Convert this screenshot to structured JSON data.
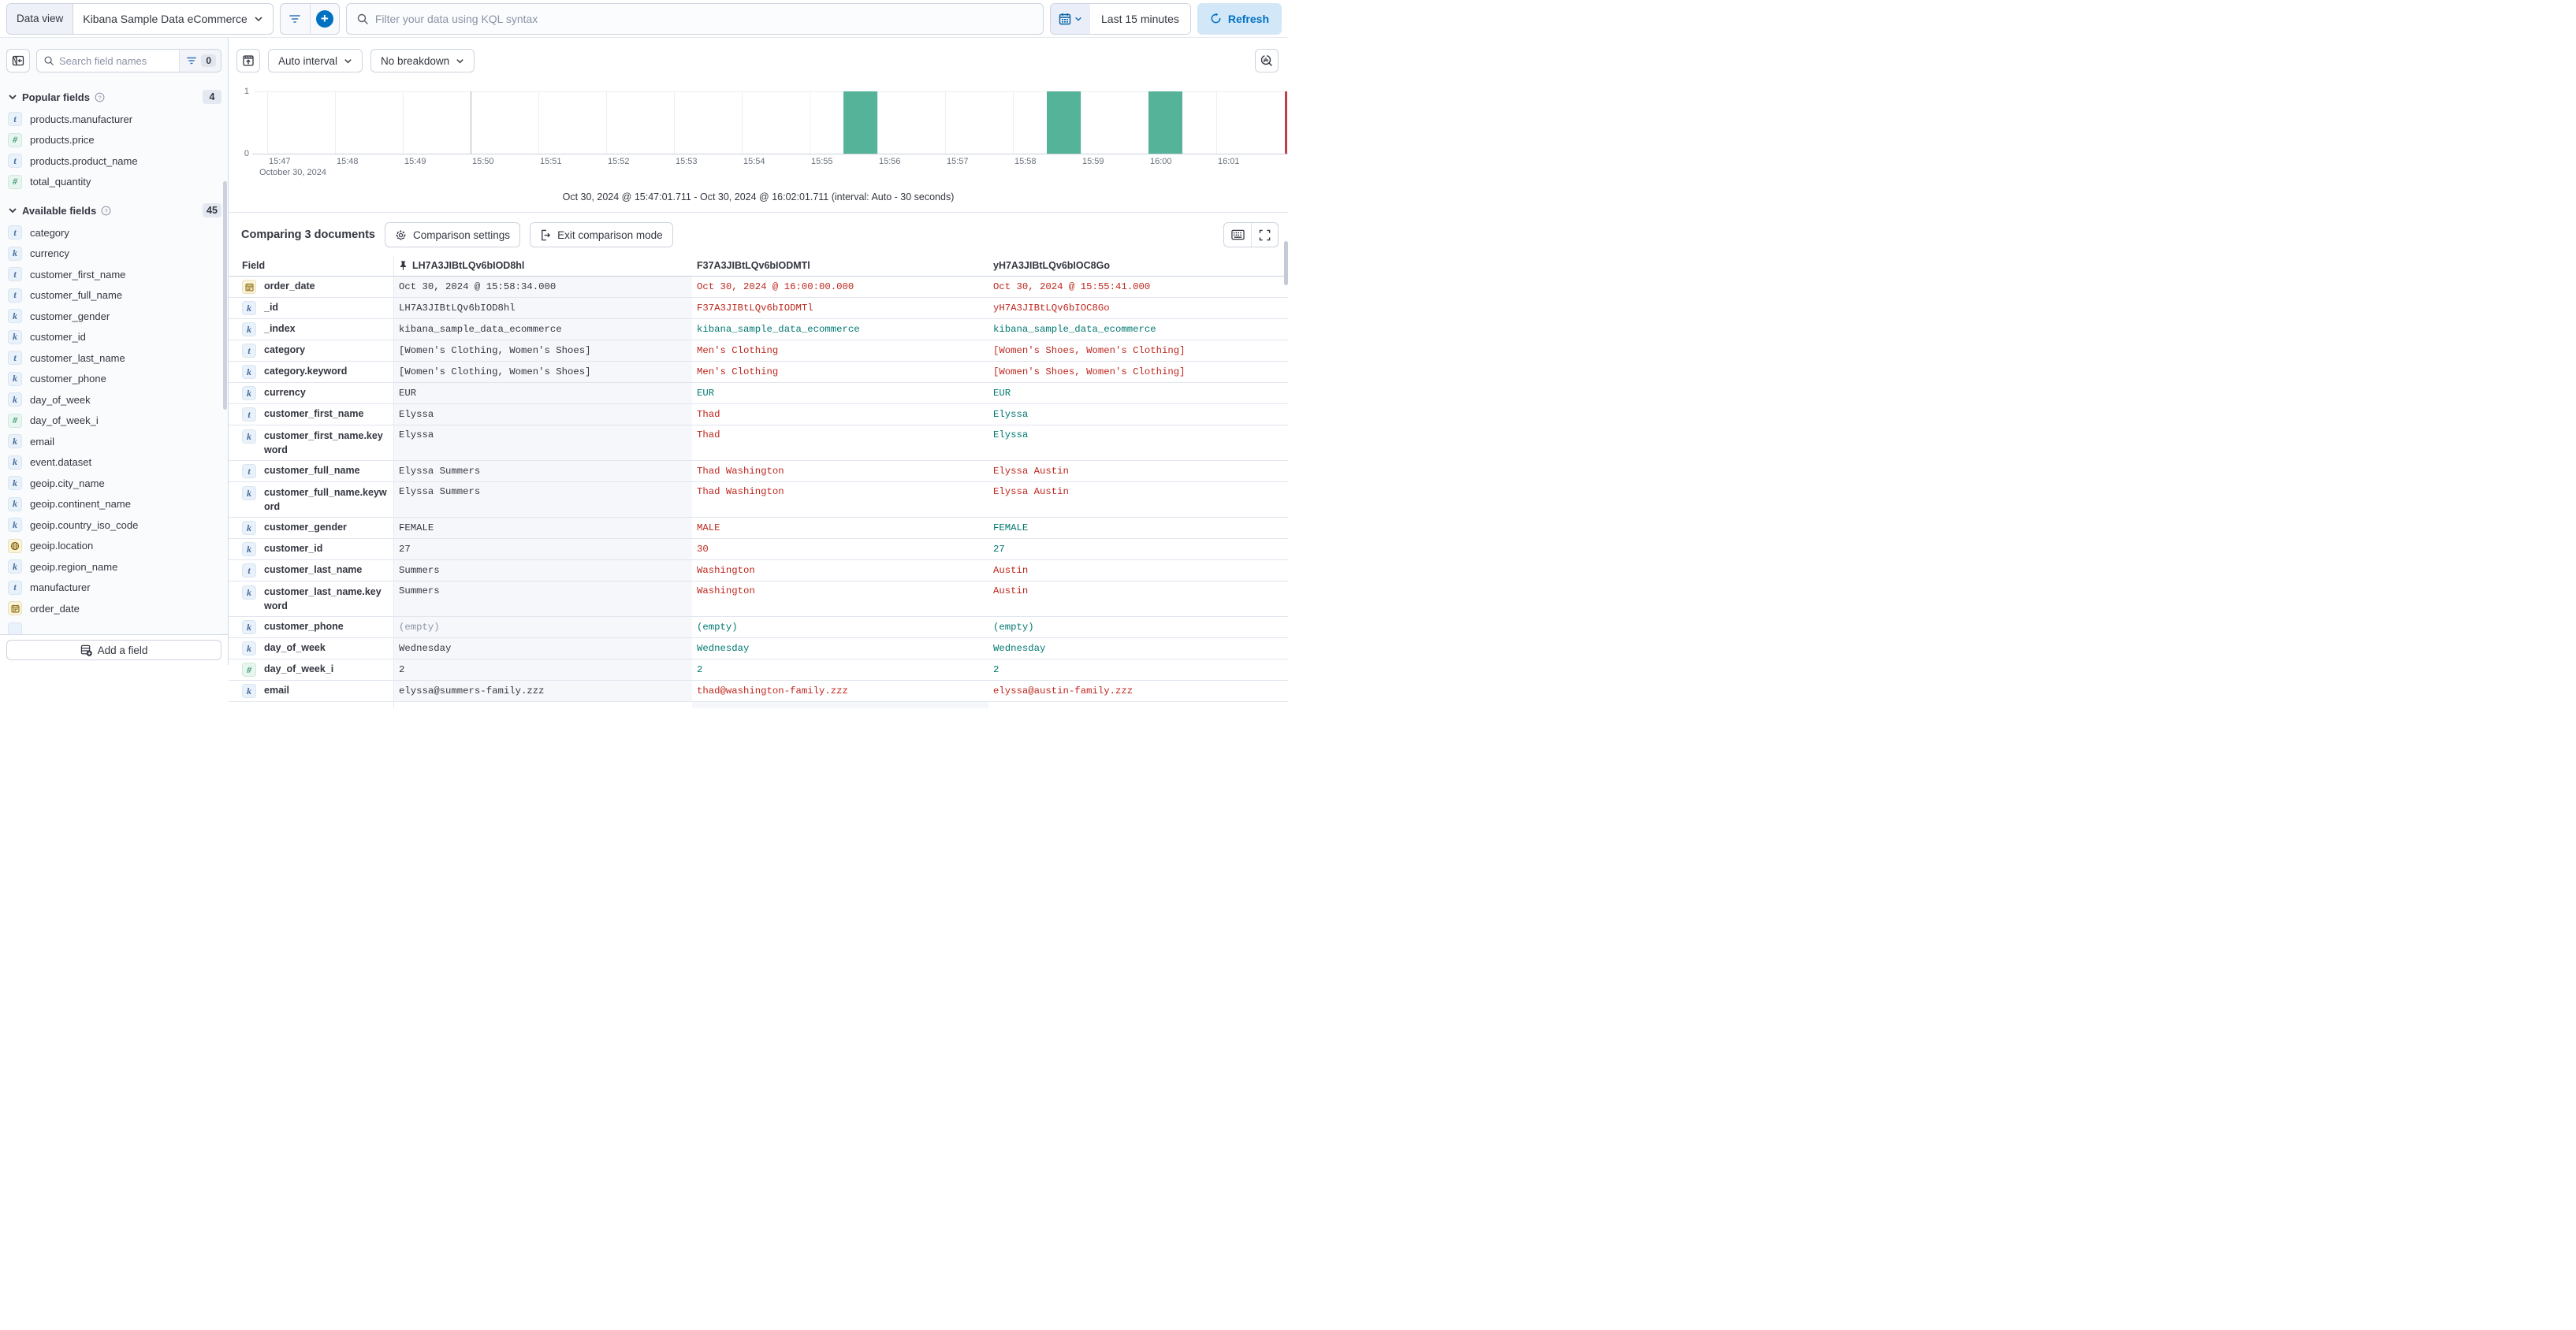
{
  "top_bar": {
    "data_view_label": "Data view",
    "data_view_value": "Kibana Sample Data eCommerce",
    "query_placeholder": "Filter your data using KQL syntax",
    "time_range": "Last 15 minutes",
    "refresh_label": "Refresh"
  },
  "sidebar": {
    "search_placeholder": "Search field names",
    "filter_count": "0",
    "popular": {
      "title": "Popular fields",
      "count": "4",
      "items": [
        {
          "type": "t",
          "name": "products.manufacturer"
        },
        {
          "type": "n",
          "name": "products.price"
        },
        {
          "type": "t",
          "name": "products.product_name"
        },
        {
          "type": "n",
          "name": "total_quantity"
        }
      ]
    },
    "available": {
      "title": "Available fields",
      "count": "45",
      "items": [
        {
          "type": "t",
          "name": "category"
        },
        {
          "type": "k",
          "name": "currency"
        },
        {
          "type": "t",
          "name": "customer_first_name"
        },
        {
          "type": "t",
          "name": "customer_full_name"
        },
        {
          "type": "k",
          "name": "customer_gender"
        },
        {
          "type": "k",
          "name": "customer_id"
        },
        {
          "type": "t",
          "name": "customer_last_name"
        },
        {
          "type": "k",
          "name": "customer_phone"
        },
        {
          "type": "k",
          "name": "day_of_week"
        },
        {
          "type": "n",
          "name": "day_of_week_i"
        },
        {
          "type": "k",
          "name": "email"
        },
        {
          "type": "k",
          "name": "event.dataset"
        },
        {
          "type": "k",
          "name": "geoip.city_name"
        },
        {
          "type": "k",
          "name": "geoip.continent_name"
        },
        {
          "type": "k",
          "name": "geoip.country_iso_code"
        },
        {
          "type": "geo",
          "name": "geoip.location"
        },
        {
          "type": "k",
          "name": "geoip.region_name"
        },
        {
          "type": "t",
          "name": "manufacturer"
        },
        {
          "type": "date",
          "name": "order_date"
        }
      ]
    },
    "add_field_label": "Add a field"
  },
  "chart_toolbar": {
    "interval_label": "Auto interval",
    "breakdown_label": "No breakdown"
  },
  "chart_data": {
    "type": "bar",
    "title": "Document count histogram over time",
    "x_ticks": [
      "15:47",
      "15:48",
      "15:49",
      "15:50",
      "15:51",
      "15:52",
      "15:53",
      "15:54",
      "15:55",
      "15:56",
      "15:57",
      "15:58",
      "15:59",
      "16:00",
      "16:01"
    ],
    "x_date_label": "October 30, 2024",
    "y_ticks": [
      "1",
      "0"
    ],
    "ylim": [
      0,
      1
    ],
    "bars": [
      {
        "time": "15:55:30",
        "count": 1
      },
      {
        "time": "15:58:30",
        "count": 1
      },
      {
        "time": "16:00:00",
        "count": 1
      }
    ],
    "interval": "Auto - 30 seconds",
    "end_marker_time": "16:02:01",
    "dark_gridline_tick": "15:50",
    "bar_color": "#54b399",
    "range_label": "Oct 30, 2024 @ 15:47:01.711 - Oct 30, 2024 @ 16:02:01.711 (interval: Auto - 30 seconds)"
  },
  "comparison": {
    "title": "Comparing 3 documents",
    "settings_label": "Comparison settings",
    "exit_label": "Exit comparison mode",
    "columns": [
      "Field",
      "LH7A3JIBtLQv6bIOD8hl",
      "F37A3JIBtLQv6bIODMTl",
      "yH7A3JIBtLQv6bIOC8Go"
    ],
    "diff_colors": {
      "different": "#bd271e",
      "matching": "#007871"
    },
    "rows": [
      {
        "type": "date",
        "field": "order_date",
        "wrap": false,
        "values": [
          {
            "text": "Oct 30, 2024 @ 15:58:34.000",
            "c": "base"
          },
          {
            "text": "Oct 30, 2024 @ 16:00:00.000",
            "c": "diff"
          },
          {
            "text": "Oct 30, 2024 @ 15:55:41.000",
            "c": "diff"
          }
        ]
      },
      {
        "type": "k",
        "field": "_id",
        "wrap": false,
        "values": [
          {
            "text": "LH7A3JIBtLQv6bIOD8hl",
            "c": "base"
          },
          {
            "text": "F37A3JIBtLQv6bIODMTl",
            "c": "diff"
          },
          {
            "text": "yH7A3JIBtLQv6bIOC8Go",
            "c": "diff"
          }
        ]
      },
      {
        "type": "k",
        "field": "_index",
        "wrap": false,
        "values": [
          {
            "text": "kibana_sample_data_ecommerce",
            "c": "base"
          },
          {
            "text": "kibana_sample_data_ecommerce",
            "c": "same"
          },
          {
            "text": "kibana_sample_data_ecommerce",
            "c": "same"
          }
        ]
      },
      {
        "type": "t",
        "field": "category",
        "wrap": false,
        "values": [
          {
            "text": "[Women's Clothing, Women's Shoes]",
            "c": "base"
          },
          {
            "text": "Men's Clothing",
            "c": "diff"
          },
          {
            "text": "[Women's Shoes, Women's Clothing]",
            "c": "diff"
          }
        ]
      },
      {
        "type": "k",
        "field": "category.keyword",
        "wrap": false,
        "values": [
          {
            "text": "[Women's Clothing, Women's Shoes]",
            "c": "base"
          },
          {
            "text": "Men's Clothing",
            "c": "diff"
          },
          {
            "text": "[Women's Shoes, Women's Clothing]",
            "c": "diff"
          }
        ]
      },
      {
        "type": "k",
        "field": "currency",
        "wrap": false,
        "values": [
          {
            "text": "EUR",
            "c": "base"
          },
          {
            "text": "EUR",
            "c": "same"
          },
          {
            "text": "EUR",
            "c": "same"
          }
        ]
      },
      {
        "type": "t",
        "field": "customer_first_name",
        "wrap": false,
        "values": [
          {
            "text": "Elyssa",
            "c": "base"
          },
          {
            "text": "Thad",
            "c": "diff"
          },
          {
            "text": "Elyssa",
            "c": "same"
          }
        ]
      },
      {
        "type": "k",
        "field": "customer_first_name.keyword",
        "wrap": true,
        "values": [
          {
            "text": "Elyssa",
            "c": "base"
          },
          {
            "text": "Thad",
            "c": "diff"
          },
          {
            "text": "Elyssa",
            "c": "same"
          }
        ]
      },
      {
        "type": "t",
        "field": "customer_full_name",
        "wrap": false,
        "values": [
          {
            "text": "Elyssa Summers",
            "c": "base"
          },
          {
            "text": "Thad Washington",
            "c": "diff"
          },
          {
            "text": "Elyssa Austin",
            "c": "diff"
          }
        ]
      },
      {
        "type": "k",
        "field": "customer_full_name.keyword",
        "wrap": true,
        "values": [
          {
            "text": "Elyssa Summers",
            "c": "base"
          },
          {
            "text": "Thad Washington",
            "c": "diff"
          },
          {
            "text": "Elyssa Austin",
            "c": "diff"
          }
        ]
      },
      {
        "type": "k",
        "field": "customer_gender",
        "wrap": false,
        "values": [
          {
            "text": "FEMALE",
            "c": "base"
          },
          {
            "text": "MALE",
            "c": "diff"
          },
          {
            "text": "FEMALE",
            "c": "same"
          }
        ]
      },
      {
        "type": "k",
        "field": "customer_id",
        "wrap": false,
        "values": [
          {
            "text": "27",
            "c": "base"
          },
          {
            "text": "30",
            "c": "diff"
          },
          {
            "text": "27",
            "c": "same"
          }
        ]
      },
      {
        "type": "t",
        "field": "customer_last_name",
        "wrap": false,
        "values": [
          {
            "text": "Summers",
            "c": "base"
          },
          {
            "text": "Washington",
            "c": "diff"
          },
          {
            "text": "Austin",
            "c": "diff"
          }
        ]
      },
      {
        "type": "k",
        "field": "customer_last_name.keyword",
        "wrap": true,
        "values": [
          {
            "text": "Summers",
            "c": "base"
          },
          {
            "text": "Washington",
            "c": "diff"
          },
          {
            "text": "Austin",
            "c": "diff"
          }
        ]
      },
      {
        "type": "k",
        "field": "customer_phone",
        "wrap": false,
        "values": [
          {
            "text": "(empty)",
            "c": "muted"
          },
          {
            "text": "(empty)",
            "c": "same"
          },
          {
            "text": "(empty)",
            "c": "same"
          }
        ]
      },
      {
        "type": "k",
        "field": "day_of_week",
        "wrap": false,
        "values": [
          {
            "text": "Wednesday",
            "c": "base"
          },
          {
            "text": "Wednesday",
            "c": "same"
          },
          {
            "text": "Wednesday",
            "c": "same"
          }
        ]
      },
      {
        "type": "n",
        "field": "day_of_week_i",
        "wrap": false,
        "values": [
          {
            "text": "2",
            "c": "base"
          },
          {
            "text": "2",
            "c": "same"
          },
          {
            "text": "2",
            "c": "same"
          }
        ]
      },
      {
        "type": "k",
        "field": "email",
        "wrap": false,
        "values": [
          {
            "text": "elyssa@summers-family.zzz",
            "c": "base"
          },
          {
            "text": "thad@washington-family.zzz",
            "c": "diff"
          },
          {
            "text": "elyssa@austin-family.zzz",
            "c": "diff"
          }
        ]
      }
    ]
  }
}
